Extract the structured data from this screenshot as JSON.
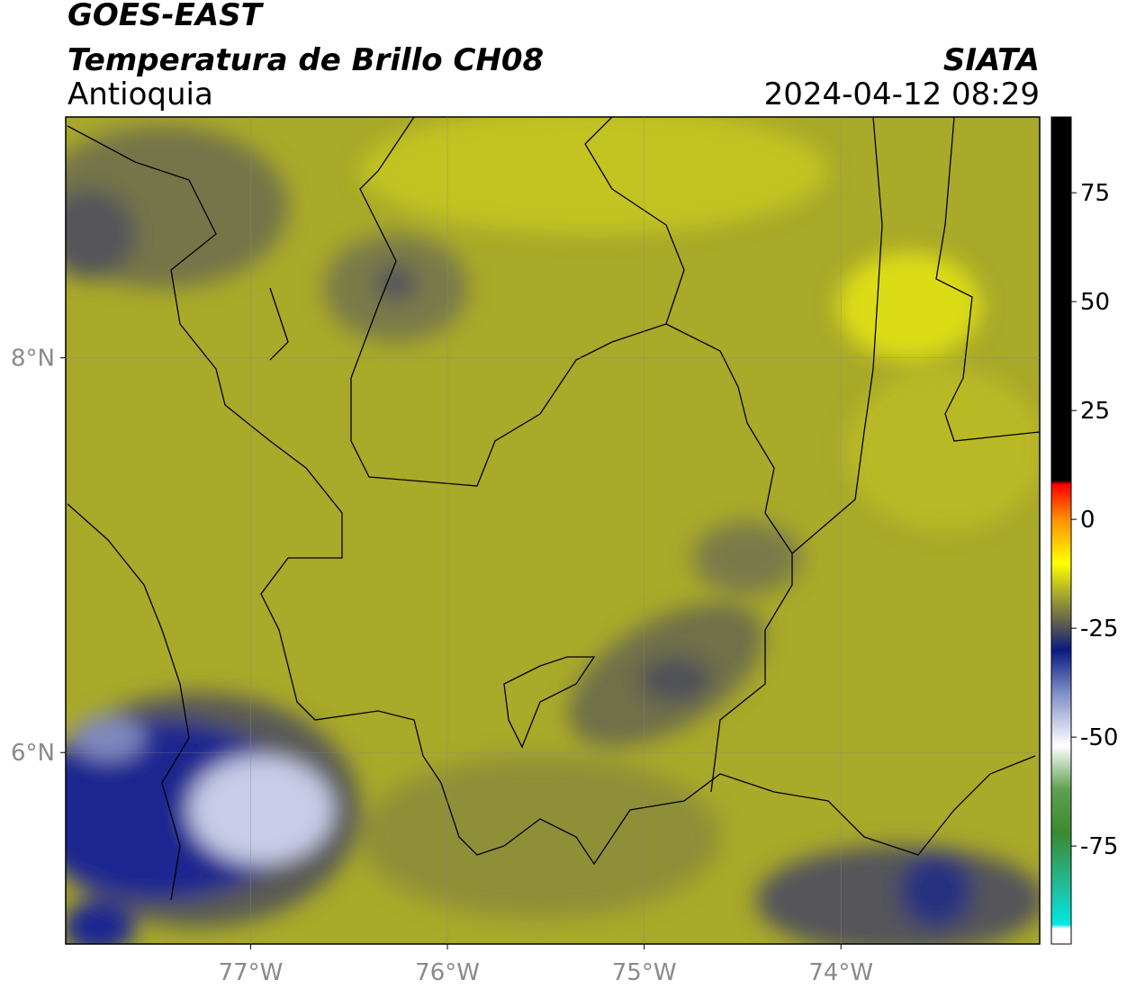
{
  "header": {
    "title": "GOES-EAST",
    "subtitle": "Temperatura de Brillo CH08",
    "region": "Antioquia",
    "source": "SIATA",
    "datetime": "2024-04-12 08:29"
  },
  "map": {
    "xlim": [
      -77.94,
      -72.99
    ],
    "ylim": [
      5.03,
      9.22
    ],
    "xticks": [
      {
        "value": -77,
        "label": "77°W"
      },
      {
        "value": -76,
        "label": "76°W"
      },
      {
        "value": -75,
        "label": "75°W"
      },
      {
        "value": -74,
        "label": "74°W"
      }
    ],
    "yticks": [
      {
        "value": 8,
        "label": "8°N"
      },
      {
        "value": 6,
        "label": "6°N"
      }
    ],
    "grid": true
  },
  "colorbar": {
    "lim": [
      -97.5,
      92.4
    ],
    "ticks": [
      75,
      50,
      25,
      0,
      -25,
      -50,
      -75
    ],
    "colorscale": [
      {
        "value": -97.5,
        "color": "#ffffff"
      },
      {
        "value": -94,
        "color": "#ffffff"
      },
      {
        "value": -93,
        "color": "#00e8e0"
      },
      {
        "value": -85,
        "color": "#20c0a0"
      },
      {
        "value": -72,
        "color": "#3a8a30"
      },
      {
        "value": -62,
        "color": "#60a050"
      },
      {
        "value": -52,
        "color": "#ffffff"
      },
      {
        "value": -40,
        "color": "#8090c8"
      },
      {
        "value": -30,
        "color": "#0a1a80"
      },
      {
        "value": -25,
        "color": "#505058"
      },
      {
        "value": -18,
        "color": "#a0a030"
      },
      {
        "value": -10,
        "color": "#ffff00"
      },
      {
        "value": 0,
        "color": "#ff9000"
      },
      {
        "value": 8,
        "color": "#ff0000"
      },
      {
        "value": 9,
        "color": "#000000"
      },
      {
        "value": 92.4,
        "color": "#000000"
      }
    ]
  }
}
